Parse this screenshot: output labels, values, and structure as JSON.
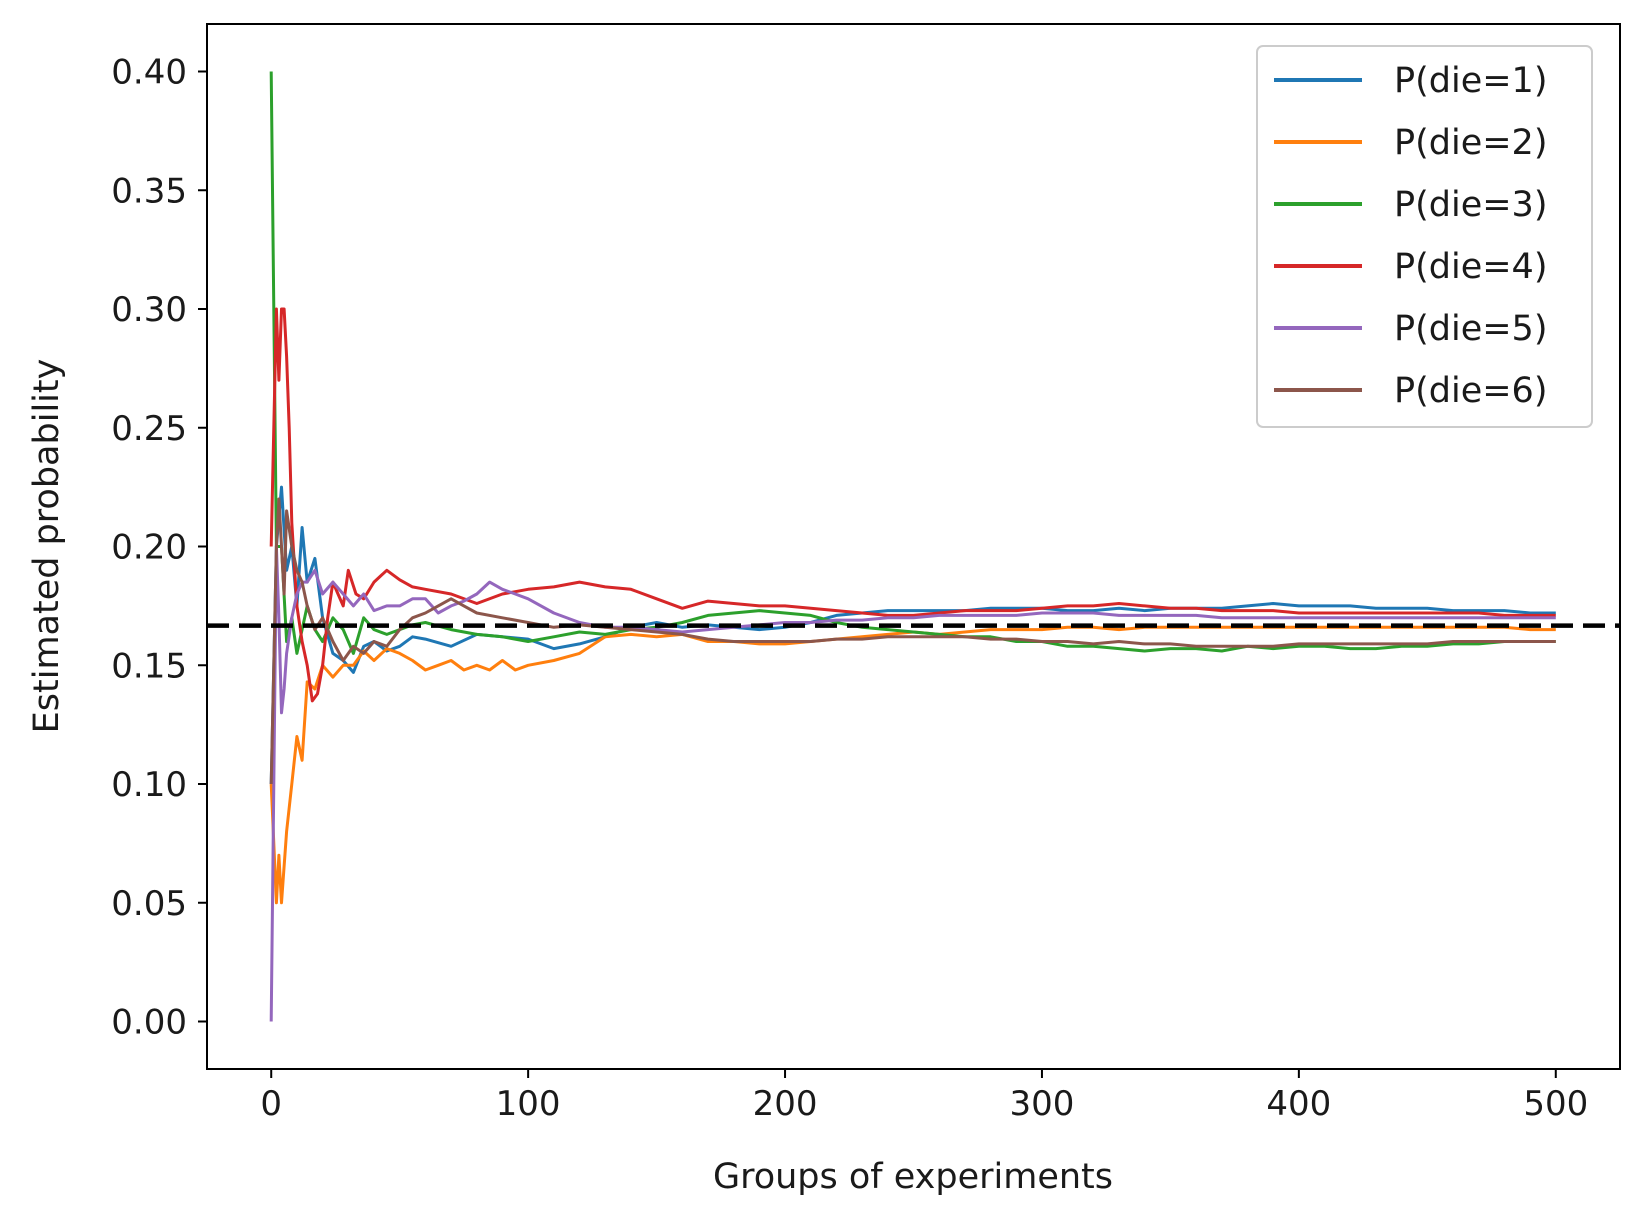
{
  "chart_data": {
    "type": "line",
    "title": "",
    "xlabel": "Groups of experiments",
    "ylabel": "Estimated probability",
    "xlim": [
      -25,
      525
    ],
    "ylim": [
      -0.02,
      0.42
    ],
    "xticks": [
      0,
      100,
      200,
      300,
      400,
      500
    ],
    "xtick_labels": [
      "0",
      "100",
      "200",
      "300",
      "400",
      "500"
    ],
    "yticks": [
      0.0,
      0.05,
      0.1,
      0.15,
      0.2,
      0.25,
      0.3,
      0.35,
      0.4
    ],
    "ytick_labels": [
      "0.00",
      "0.05",
      "0.10",
      "0.15",
      "0.20",
      "0.25",
      "0.30",
      "0.35",
      "0.40"
    ],
    "grid": false,
    "legend_position": "top-right",
    "reference_line": {
      "y": 0.1667,
      "style": "dashed",
      "color": "#000000"
    },
    "series": [
      {
        "name": "P(die=1)",
        "color": "#1f77b4",
        "x": [
          0,
          2,
          4,
          6,
          8,
          10,
          12,
          14,
          17,
          20,
          24,
          28,
          32,
          36,
          40,
          45,
          50,
          55,
          60,
          70,
          80,
          90,
          100,
          110,
          120,
          130,
          140,
          150,
          160,
          170,
          180,
          190,
          200,
          210,
          220,
          230,
          240,
          250,
          260,
          270,
          280,
          290,
          300,
          310,
          320,
          330,
          340,
          350,
          360,
          370,
          380,
          390,
          400,
          410,
          420,
          430,
          440,
          450,
          460,
          470,
          480,
          490,
          500
        ],
        "values": [
          0.1,
          0.2,
          0.225,
          0.19,
          0.2,
          0.175,
          0.208,
          0.185,
          0.195,
          0.17,
          0.155,
          0.152,
          0.147,
          0.158,
          0.16,
          0.156,
          0.158,
          0.162,
          0.161,
          0.158,
          0.163,
          0.162,
          0.161,
          0.157,
          0.159,
          0.162,
          0.166,
          0.168,
          0.166,
          0.167,
          0.166,
          0.165,
          0.166,
          0.168,
          0.171,
          0.172,
          0.173,
          0.173,
          0.173,
          0.173,
          0.174,
          0.174,
          0.174,
          0.173,
          0.173,
          0.174,
          0.173,
          0.174,
          0.174,
          0.174,
          0.175,
          0.176,
          0.175,
          0.175,
          0.175,
          0.174,
          0.174,
          0.174,
          0.173,
          0.173,
          0.173,
          0.172,
          0.172
        ]
      },
      {
        "name": "P(die=2)",
        "color": "#ff7f0e",
        "x": [
          0,
          2,
          3,
          4,
          6,
          8,
          10,
          12,
          14,
          17,
          20,
          24,
          28,
          32,
          36,
          40,
          45,
          50,
          55,
          60,
          65,
          70,
          75,
          80,
          85,
          90,
          95,
          100,
          110,
          120,
          130,
          140,
          150,
          160,
          170,
          180,
          190,
          200,
          210,
          220,
          230,
          240,
          250,
          260,
          270,
          280,
          290,
          300,
          310,
          320,
          330,
          340,
          350,
          360,
          370,
          380,
          390,
          400,
          410,
          420,
          430,
          440,
          450,
          460,
          470,
          480,
          490,
          500
        ],
        "values": [
          0.1,
          0.05,
          0.07,
          0.05,
          0.08,
          0.1,
          0.12,
          0.11,
          0.143,
          0.14,
          0.15,
          0.145,
          0.15,
          0.15,
          0.156,
          0.152,
          0.157,
          0.155,
          0.152,
          0.148,
          0.15,
          0.152,
          0.148,
          0.15,
          0.148,
          0.152,
          0.148,
          0.15,
          0.152,
          0.155,
          0.162,
          0.163,
          0.162,
          0.163,
          0.16,
          0.16,
          0.159,
          0.159,
          0.16,
          0.161,
          0.162,
          0.163,
          0.164,
          0.163,
          0.164,
          0.165,
          0.165,
          0.165,
          0.166,
          0.166,
          0.165,
          0.166,
          0.166,
          0.166,
          0.166,
          0.166,
          0.166,
          0.166,
          0.166,
          0.166,
          0.166,
          0.166,
          0.166,
          0.166,
          0.166,
          0.166,
          0.165,
          0.165
        ]
      },
      {
        "name": "P(die=3)",
        "color": "#2ca02c",
        "x": [
          0,
          1,
          2,
          4,
          6,
          8,
          10,
          12,
          14,
          17,
          20,
          24,
          28,
          32,
          36,
          40,
          45,
          50,
          55,
          60,
          70,
          80,
          90,
          100,
          110,
          120,
          130,
          140,
          150,
          160,
          170,
          180,
          190,
          200,
          210,
          220,
          230,
          240,
          250,
          260,
          270,
          280,
          290,
          300,
          310,
          320,
          330,
          340,
          350,
          360,
          370,
          380,
          390,
          400,
          410,
          420,
          430,
          440,
          450,
          460,
          470,
          480,
          490,
          500
        ],
        "values": [
          0.4,
          0.3,
          0.2,
          0.2,
          0.16,
          0.17,
          0.155,
          0.165,
          0.175,
          0.165,
          0.16,
          0.17,
          0.165,
          0.155,
          0.17,
          0.165,
          0.163,
          0.165,
          0.167,
          0.168,
          0.165,
          0.163,
          0.162,
          0.16,
          0.162,
          0.164,
          0.163,
          0.165,
          0.166,
          0.168,
          0.171,
          0.172,
          0.173,
          0.172,
          0.171,
          0.168,
          0.166,
          0.165,
          0.164,
          0.163,
          0.162,
          0.162,
          0.16,
          0.16,
          0.158,
          0.158,
          0.157,
          0.156,
          0.157,
          0.157,
          0.156,
          0.158,
          0.157,
          0.158,
          0.158,
          0.157,
          0.157,
          0.158,
          0.158,
          0.159,
          0.159,
          0.16,
          0.16,
          0.16
        ]
      },
      {
        "name": "P(die=4)",
        "color": "#d62728",
        "x": [
          0,
          1,
          2,
          3,
          4,
          5,
          6,
          7,
          8,
          10,
          12,
          14,
          16,
          18,
          20,
          22,
          24,
          26,
          28,
          30,
          33,
          36,
          40,
          45,
          50,
          55,
          60,
          70,
          80,
          90,
          100,
          110,
          120,
          130,
          140,
          150,
          160,
          170,
          180,
          190,
          200,
          210,
          220,
          230,
          240,
          250,
          260,
          270,
          280,
          290,
          300,
          310,
          320,
          330,
          340,
          350,
          360,
          370,
          380,
          390,
          400,
          410,
          420,
          430,
          440,
          450,
          460,
          470,
          480,
          490,
          500
        ],
        "values": [
          0.2,
          0.25,
          0.3,
          0.27,
          0.3,
          0.3,
          0.28,
          0.25,
          0.21,
          0.175,
          0.16,
          0.15,
          0.135,
          0.138,
          0.15,
          0.17,
          0.185,
          0.18,
          0.175,
          0.19,
          0.18,
          0.178,
          0.185,
          0.19,
          0.186,
          0.183,
          0.182,
          0.18,
          0.176,
          0.18,
          0.182,
          0.183,
          0.185,
          0.183,
          0.182,
          0.178,
          0.174,
          0.177,
          0.176,
          0.175,
          0.175,
          0.174,
          0.173,
          0.172,
          0.171,
          0.171,
          0.172,
          0.173,
          0.173,
          0.173,
          0.174,
          0.175,
          0.175,
          0.176,
          0.175,
          0.174,
          0.174,
          0.173,
          0.173,
          0.173,
          0.172,
          0.172,
          0.172,
          0.172,
          0.172,
          0.172,
          0.172,
          0.172,
          0.171,
          0.171,
          0.171
        ]
      },
      {
        "name": "P(die=5)",
        "color": "#9467bd",
        "x": [
          0,
          1,
          2,
          3,
          4,
          5,
          6,
          8,
          10,
          12,
          14,
          17,
          20,
          24,
          28,
          32,
          36,
          40,
          45,
          50,
          55,
          60,
          65,
          70,
          75,
          80,
          85,
          90,
          95,
          100,
          110,
          120,
          130,
          140,
          150,
          160,
          170,
          180,
          190,
          200,
          210,
          220,
          230,
          240,
          250,
          260,
          270,
          280,
          290,
          300,
          310,
          320,
          330,
          340,
          350,
          360,
          370,
          380,
          390,
          400,
          410,
          420,
          430,
          440,
          450,
          460,
          470,
          480,
          490,
          500
        ],
        "values": [
          0.0,
          0.1,
          0.2,
          0.17,
          0.13,
          0.14,
          0.155,
          0.17,
          0.18,
          0.185,
          0.185,
          0.19,
          0.18,
          0.185,
          0.18,
          0.175,
          0.18,
          0.173,
          0.175,
          0.175,
          0.178,
          0.178,
          0.172,
          0.175,
          0.177,
          0.18,
          0.185,
          0.182,
          0.18,
          0.178,
          0.172,
          0.168,
          0.166,
          0.166,
          0.165,
          0.164,
          0.165,
          0.166,
          0.167,
          0.168,
          0.168,
          0.169,
          0.169,
          0.17,
          0.17,
          0.171,
          0.171,
          0.171,
          0.171,
          0.172,
          0.172,
          0.172,
          0.171,
          0.171,
          0.171,
          0.171,
          0.17,
          0.17,
          0.17,
          0.17,
          0.17,
          0.17,
          0.17,
          0.17,
          0.17,
          0.17,
          0.17,
          0.17,
          0.17,
          0.17
        ]
      },
      {
        "name": "P(die=6)",
        "color": "#8c564b",
        "x": [
          0,
          1,
          2,
          3,
          4,
          5,
          6,
          8,
          10,
          12,
          14,
          17,
          20,
          24,
          28,
          32,
          36,
          40,
          45,
          50,
          55,
          60,
          65,
          70,
          75,
          80,
          90,
          100,
          110,
          120,
          130,
          140,
          150,
          160,
          170,
          180,
          190,
          200,
          210,
          220,
          230,
          240,
          250,
          260,
          270,
          280,
          290,
          300,
          310,
          320,
          330,
          340,
          350,
          360,
          370,
          380,
          390,
          400,
          410,
          420,
          430,
          440,
          450,
          460,
          470,
          480,
          490,
          500
        ],
        "values": [
          0.1,
          0.15,
          0.2,
          0.22,
          0.2,
          0.18,
          0.215,
          0.2,
          0.19,
          0.185,
          0.175,
          0.165,
          0.17,
          0.16,
          0.152,
          0.158,
          0.155,
          0.16,
          0.158,
          0.165,
          0.17,
          0.172,
          0.175,
          0.178,
          0.175,
          0.172,
          0.17,
          0.168,
          0.166,
          0.167,
          0.166,
          0.165,
          0.164,
          0.163,
          0.161,
          0.16,
          0.16,
          0.16,
          0.16,
          0.161,
          0.161,
          0.162,
          0.162,
          0.162,
          0.162,
          0.161,
          0.161,
          0.16,
          0.16,
          0.159,
          0.16,
          0.159,
          0.159,
          0.158,
          0.158,
          0.158,
          0.158,
          0.159,
          0.159,
          0.159,
          0.159,
          0.159,
          0.159,
          0.16,
          0.16,
          0.16,
          0.16,
          0.16
        ]
      }
    ]
  }
}
